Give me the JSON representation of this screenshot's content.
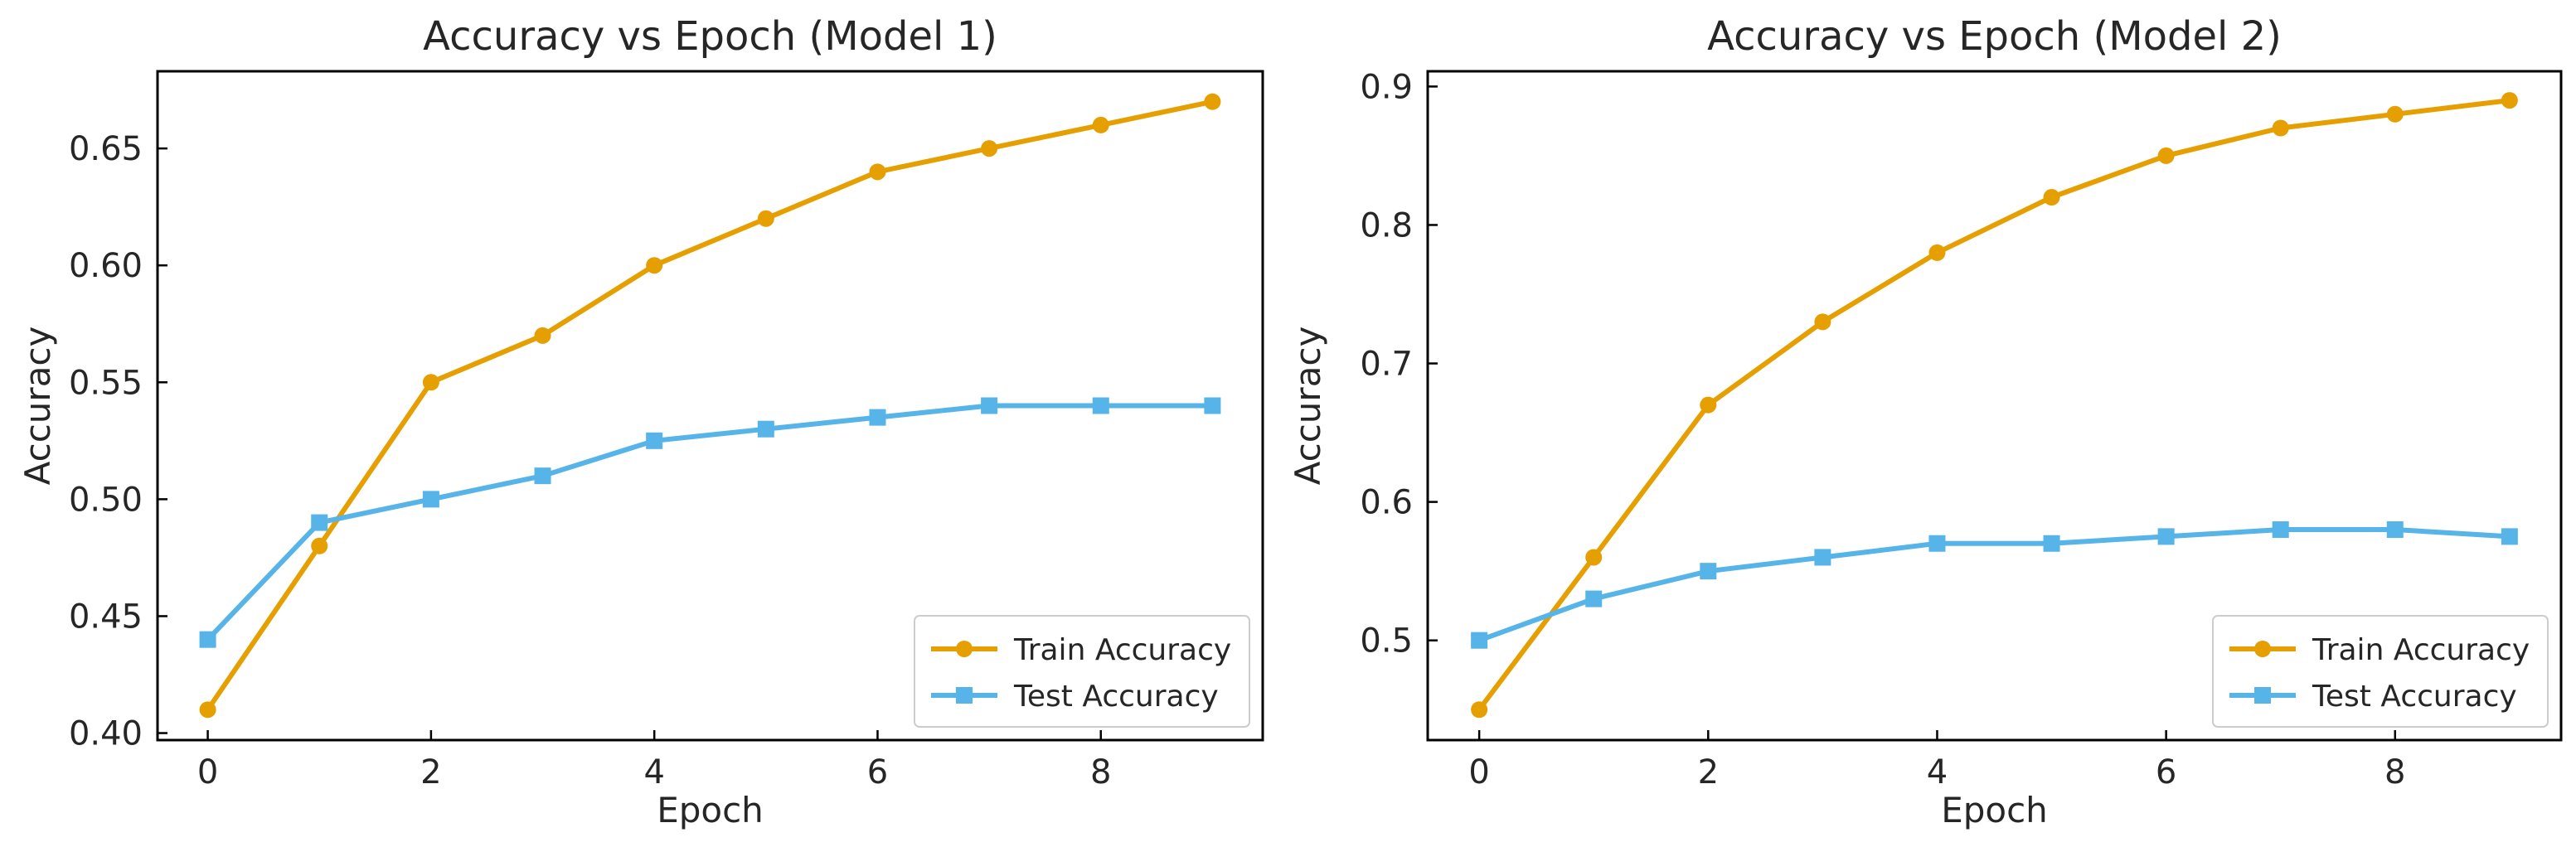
{
  "chart_data": [
    {
      "type": "line",
      "title": "Accuracy vs Epoch (Model 1)",
      "xlabel": "Epoch",
      "ylabel": "Accuracy",
      "x": [
        0,
        1,
        2,
        3,
        4,
        5,
        6,
        7,
        8,
        9
      ],
      "xlim": [
        -0.45,
        9.45
      ],
      "ylim": [
        0.397,
        0.683
      ],
      "xticks": [
        0,
        2,
        4,
        6,
        8
      ],
      "xtick_labels": [
        "0",
        "2",
        "4",
        "6",
        "8"
      ],
      "yticks": [
        0.4,
        0.45,
        0.5,
        0.55,
        0.6,
        0.65
      ],
      "ytick_labels": [
        "0.40",
        "0.45",
        "0.50",
        "0.55",
        "0.60",
        "0.65"
      ],
      "grid": false,
      "legend": "lower-right",
      "series": [
        {
          "name": "Train Accuracy",
          "color": "#E69F00",
          "marker": "circle",
          "values": [
            0.41,
            0.48,
            0.55,
            0.57,
            0.6,
            0.62,
            0.64,
            0.65,
            0.66,
            0.67
          ]
        },
        {
          "name": "Test Accuracy",
          "color": "#56B4E9",
          "marker": "square",
          "values": [
            0.44,
            0.49,
            0.5,
            0.51,
            0.525,
            0.53,
            0.535,
            0.54,
            0.54,
            0.54
          ]
        }
      ]
    },
    {
      "type": "line",
      "title": "Accuracy vs Epoch (Model 2)",
      "xlabel": "Epoch",
      "ylabel": "Accuracy",
      "x": [
        0,
        1,
        2,
        3,
        4,
        5,
        6,
        7,
        8,
        9
      ],
      "xlim": [
        -0.45,
        9.45
      ],
      "ylim": [
        0.428,
        0.911
      ],
      "xticks": [
        0,
        2,
        4,
        6,
        8
      ],
      "xtick_labels": [
        "0",
        "2",
        "4",
        "6",
        "8"
      ],
      "yticks": [
        0.5,
        0.6,
        0.7,
        0.8,
        0.9
      ],
      "ytick_labels": [
        "0.5",
        "0.6",
        "0.7",
        "0.8",
        "0.9"
      ],
      "grid": false,
      "legend": "lower-right",
      "series": [
        {
          "name": "Train Accuracy",
          "color": "#E69F00",
          "marker": "circle",
          "values": [
            0.45,
            0.56,
            0.67,
            0.73,
            0.78,
            0.82,
            0.85,
            0.87,
            0.88,
            0.89
          ]
        },
        {
          "name": "Test Accuracy",
          "color": "#56B4E9",
          "marker": "square",
          "values": [
            0.5,
            0.53,
            0.55,
            0.56,
            0.57,
            0.57,
            0.575,
            0.58,
            0.58,
            0.575
          ]
        }
      ]
    }
  ]
}
